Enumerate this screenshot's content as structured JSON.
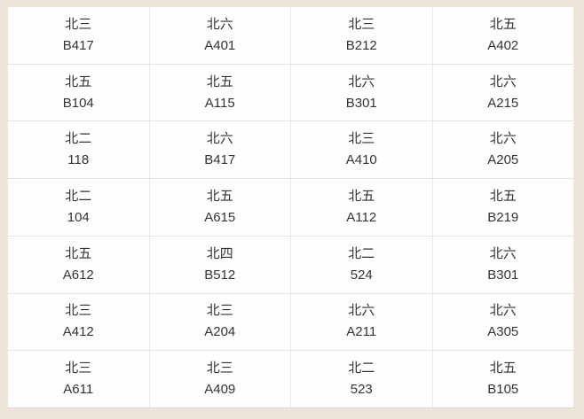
{
  "colors": {
    "page_background": "#ece5d8",
    "cell_background": "#fffdfd",
    "divider": "#e3e3e3",
    "bottom_edge": "#d6d6d6",
    "text": "#333333"
  },
  "table": {
    "rows": [
      {
        "cells": [
          {
            "building": "北三",
            "room": "B417"
          },
          {
            "building": "北六",
            "room": "A401"
          },
          {
            "building": "北三",
            "room": "B212"
          },
          {
            "building": "北五",
            "room": "A402"
          }
        ]
      },
      {
        "cells": [
          {
            "building": "北五",
            "room": "B104"
          },
          {
            "building": "北五",
            "room": "A115"
          },
          {
            "building": "北六",
            "room": "B301"
          },
          {
            "building": "北六",
            "room": "A215"
          }
        ]
      },
      {
        "cells": [
          {
            "building": "北二",
            "room": "118"
          },
          {
            "building": "北六",
            "room": "B417"
          },
          {
            "building": "北三",
            "room": "A410"
          },
          {
            "building": "北六",
            "room": "A205"
          }
        ]
      },
      {
        "cells": [
          {
            "building": "北二",
            "room": "104"
          },
          {
            "building": "北五",
            "room": "A615"
          },
          {
            "building": "北五",
            "room": "A112"
          },
          {
            "building": "北五",
            "room": "B219"
          }
        ]
      },
      {
        "cells": [
          {
            "building": "北五",
            "room": "A612"
          },
          {
            "building": "北四",
            "room": "B512"
          },
          {
            "building": "北二",
            "room": "524"
          },
          {
            "building": "北六",
            "room": "B301"
          }
        ]
      },
      {
        "cells": [
          {
            "building": "北三",
            "room": "A412"
          },
          {
            "building": "北三",
            "room": "A204"
          },
          {
            "building": "北六",
            "room": "A211"
          },
          {
            "building": "北六",
            "room": "A305"
          }
        ]
      },
      {
        "cells": [
          {
            "building": "北三",
            "room": "A611"
          },
          {
            "building": "北三",
            "room": "A409"
          },
          {
            "building": "北二",
            "room": "523"
          },
          {
            "building": "北五",
            "room": "B105"
          }
        ]
      }
    ]
  }
}
